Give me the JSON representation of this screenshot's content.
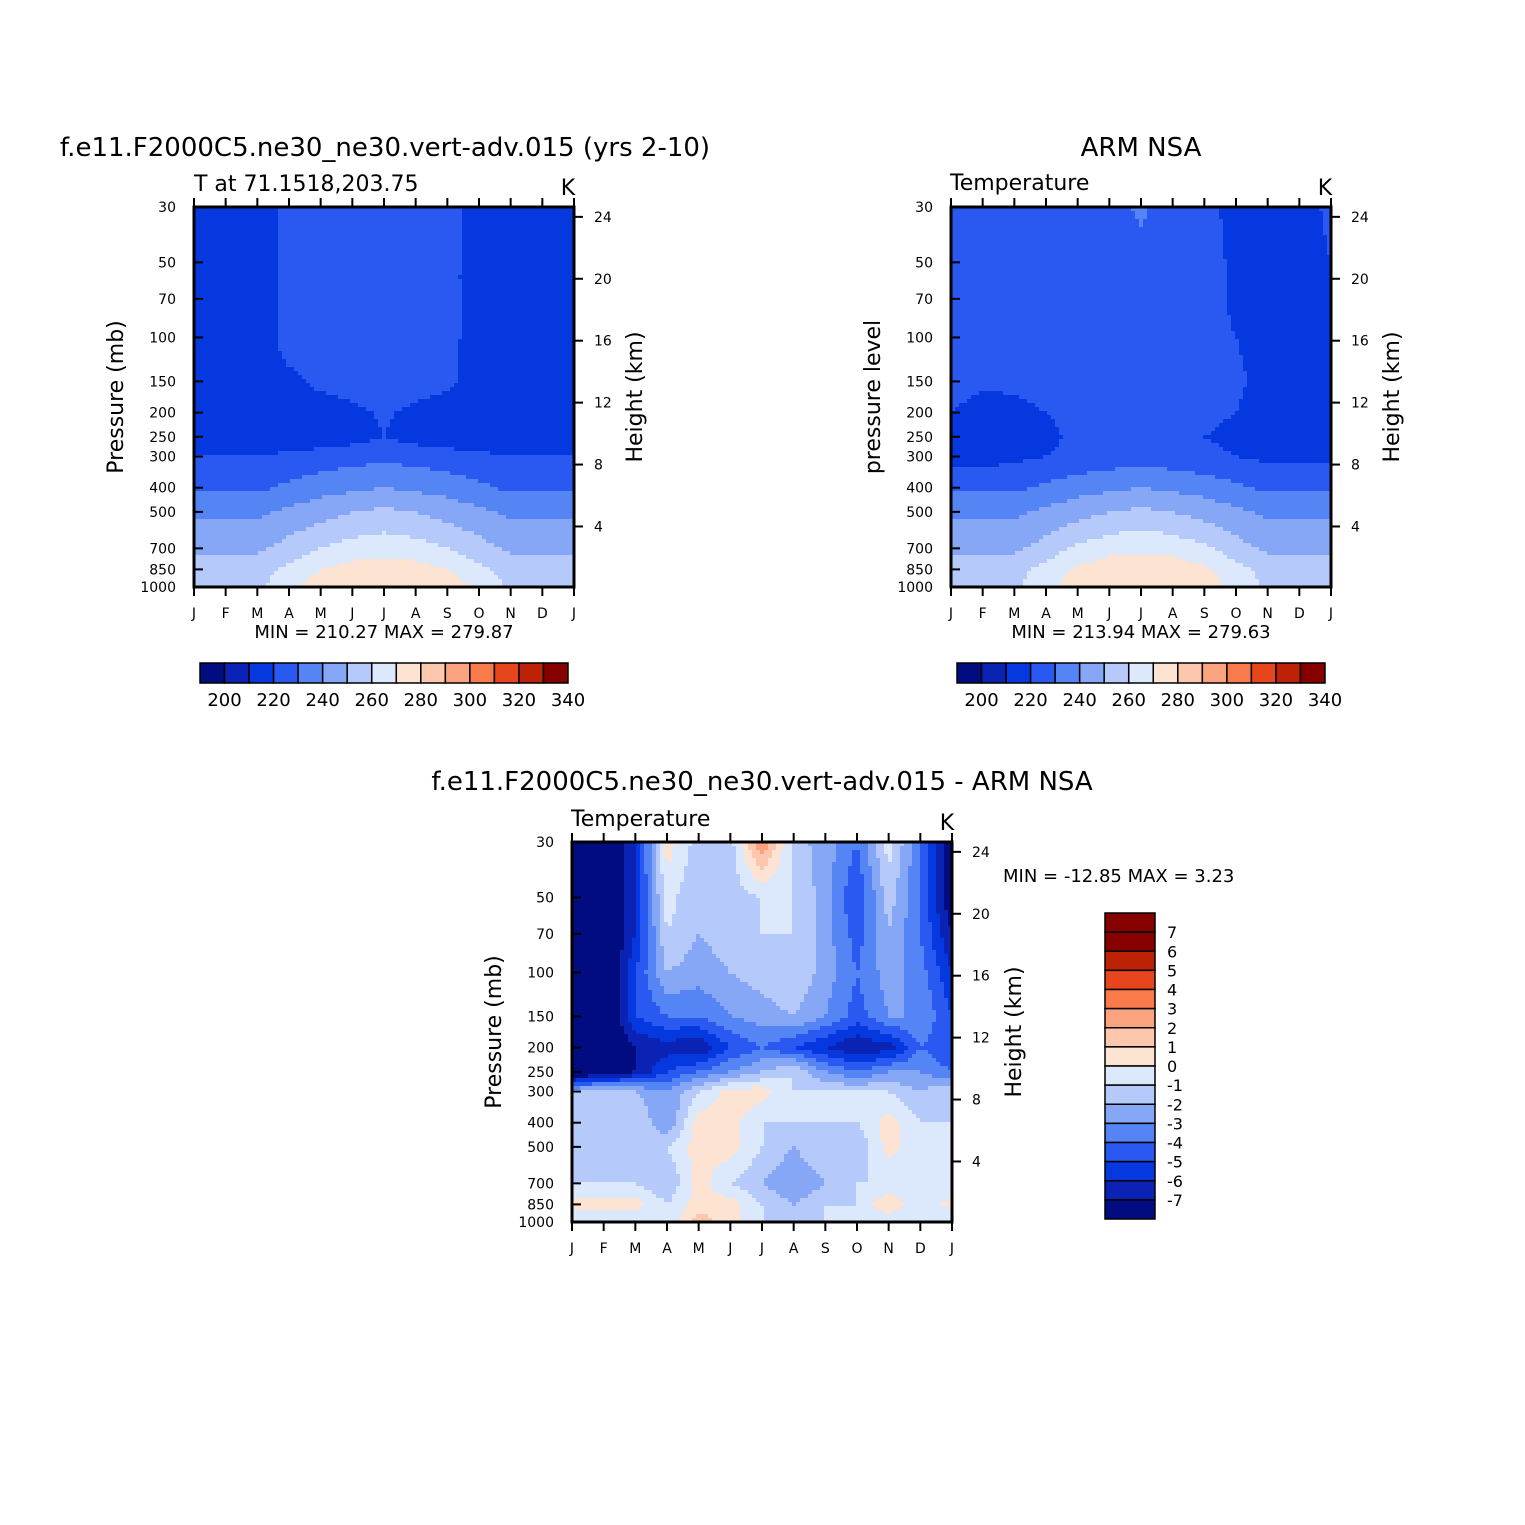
{
  "palette": {
    "abs": [
      "#000c80",
      "#0a23b4",
      "#0638e0",
      "#2a59f2",
      "#5585f5",
      "#86a7f6",
      "#b5cafa",
      "#dce8fc",
      "#fde4d2",
      "#fcc7ac",
      "#fba27f",
      "#f97b4c",
      "#e7461c",
      "#bd2106",
      "#870000"
    ],
    "diff": [
      "#000c80",
      "#0a23b4",
      "#0638e0",
      "#2a59f2",
      "#5585f5",
      "#86a7f6",
      "#b5cafa",
      "#dce8fc",
      "#fde4d2",
      "#fcc7ac",
      "#fba27f",
      "#f97b4c",
      "#e7461c",
      "#bd2106",
      "#870000"
    ]
  },
  "chart_data": [
    {
      "type": "heatmap",
      "title": "f.e11.F2000C5.ne30_ne30.vert-adv.015 (yrs 2-10)",
      "subtitle": "T at 71.1518,203.75",
      "units": "K",
      "ylabel": "Pressure (mb)",
      "ylabel_right": "Height (km)",
      "x_ticks": [
        "J",
        "F",
        "M",
        "A",
        "M",
        "J",
        "J",
        "A",
        "S",
        "O",
        "N",
        "D",
        "J"
      ],
      "y_ticks": [
        "30",
        "50",
        "70",
        "100",
        "150",
        "200",
        "250",
        "300",
        "400",
        "500",
        "700",
        "850",
        "1000"
      ],
      "y_ticks_right": [
        "24",
        "20",
        "16",
        "12",
        "8",
        "4"
      ],
      "stats": "MIN = 210.27 MAX = 279.87",
      "colorbar_labels": [
        "200",
        "220",
        "240",
        "260",
        "280",
        "300",
        "320",
        "340"
      ],
      "levels": [
        200,
        210,
        220,
        230,
        240,
        250,
        260,
        270,
        280,
        290,
        300,
        310,
        320,
        330,
        340
      ],
      "months": [
        "Jan",
        "Feb",
        "Mar",
        "Apr",
        "May",
        "Jun",
        "Jul",
        "Aug",
        "Sep",
        "Oct",
        "Nov",
        "Dec",
        "Jan"
      ],
      "plevs": [
        30,
        50,
        70,
        100,
        150,
        200,
        250,
        300,
        400,
        500,
        700,
        850,
        1000
      ],
      "values": [
        [
          214,
          214,
          214,
          224,
          224,
          224,
          224,
          224,
          224,
          214,
          214,
          214,
          214
        ],
        [
          214,
          214,
          214,
          224,
          224,
          224,
          224,
          224,
          224,
          214,
          214,
          214,
          214
        ],
        [
          214,
          214,
          214,
          224,
          224,
          224,
          224,
          224,
          224,
          214,
          214,
          214,
          214
        ],
        [
          214,
          214,
          214,
          224,
          224,
          224,
          224,
          224,
          224,
          214,
          214,
          214,
          214
        ],
        [
          214,
          214,
          214,
          218,
          222,
          224,
          224,
          224,
          222,
          216,
          214,
          214,
          214
        ],
        [
          214,
          214,
          214,
          214,
          216,
          218,
          221,
          218,
          216,
          214,
          214,
          214,
          214
        ],
        [
          214,
          214,
          214,
          214,
          214,
          216,
          220,
          216,
          214,
          214,
          214,
          214,
          214
        ],
        [
          220,
          220,
          220,
          222,
          224,
          226,
          228,
          226,
          224,
          222,
          220,
          220,
          220
        ],
        [
          228,
          228,
          228,
          232,
          236,
          238,
          240,
          238,
          236,
          232,
          228,
          228,
          228
        ],
        [
          238,
          238,
          238,
          242,
          246,
          250,
          252,
          250,
          246,
          242,
          238,
          238,
          238
        ],
        [
          248,
          248,
          248,
          254,
          260,
          264,
          266,
          264,
          260,
          254,
          248,
          248,
          248
        ],
        [
          256,
          256,
          256,
          262,
          270,
          274,
          275,
          274,
          270,
          262,
          256,
          256,
          256
        ],
        [
          258,
          258,
          258,
          266,
          276,
          280,
          280,
          280,
          276,
          268,
          258,
          258,
          258
        ]
      ]
    },
    {
      "type": "heatmap",
      "title": "ARM NSA",
      "subtitle": "Temperature",
      "units": "K",
      "ylabel": "pressure level",
      "ylabel_right": "Height (km)",
      "x_ticks": [
        "J",
        "F",
        "M",
        "A",
        "M",
        "J",
        "J",
        "A",
        "S",
        "O",
        "N",
        "D",
        "J"
      ],
      "y_ticks": [
        "30",
        "50",
        "70",
        "100",
        "150",
        "200",
        "250",
        "300",
        "400",
        "500",
        "700",
        "850",
        "1000"
      ],
      "y_ticks_right": [
        "24",
        "20",
        "16",
        "12",
        "8",
        "4"
      ],
      "stats": "MIN = 213.94 MAX = 279.63",
      "colorbar_labels": [
        "200",
        "220",
        "240",
        "260",
        "280",
        "300",
        "320",
        "340"
      ],
      "levels": [
        200,
        210,
        220,
        230,
        240,
        250,
        260,
        270,
        280,
        290,
        300,
        310,
        320,
        330,
        340
      ],
      "months": [
        "Jan",
        "Feb",
        "Mar",
        "Apr",
        "May",
        "Jun",
        "Jul",
        "Aug",
        "Sep",
        "Oct",
        "Nov",
        "Dec",
        "Jan"
      ],
      "plevs": [
        30,
        50,
        70,
        100,
        150,
        200,
        250,
        300,
        400,
        500,
        700,
        850,
        1000
      ],
      "values": [
        [
          224,
          224,
          224,
          224,
          224,
          226,
          232,
          224,
          224,
          216,
          216,
          216,
          222
        ],
        [
          224,
          224,
          224,
          224,
          224,
          224,
          226,
          224,
          224,
          218,
          216,
          216,
          220
        ],
        [
          224,
          224,
          224,
          224,
          224,
          224,
          224,
          224,
          224,
          218,
          216,
          216,
          216
        ],
        [
          224,
          224,
          224,
          224,
          224,
          224,
          224,
          224,
          224,
          220,
          216,
          216,
          216
        ],
        [
          224,
          222,
          222,
          224,
          224,
          224,
          224,
          224,
          224,
          222,
          216,
          216,
          216
        ],
        [
          220,
          216,
          217,
          220,
          222,
          224,
          224,
          224,
          222,
          220,
          216,
          216,
          216
        ],
        [
          216,
          214,
          216,
          218,
          222,
          224,
          224,
          224,
          220,
          218,
          216,
          216,
          216
        ],
        [
          216,
          216,
          218,
          220,
          222,
          224,
          226,
          224,
          222,
          220,
          218,
          218,
          218
        ],
        [
          228,
          228,
          228,
          232,
          236,
          238,
          240,
          238,
          236,
          232,
          228,
          228,
          228
        ],
        [
          238,
          238,
          238,
          242,
          246,
          250,
          252,
          250,
          246,
          242,
          238,
          238,
          238
        ],
        [
          248,
          248,
          248,
          254,
          262,
          266,
          268,
          266,
          262,
          254,
          248,
          248,
          248
        ],
        [
          256,
          256,
          256,
          264,
          272,
          276,
          277,
          276,
          272,
          264,
          256,
          256,
          256
        ],
        [
          258,
          258,
          258,
          266,
          276,
          280,
          280,
          280,
          276,
          266,
          258,
          258,
          258
        ]
      ]
    },
    {
      "type": "heatmap",
      "title": "f.e11.F2000C5.ne30_ne30.vert-adv.015 - ARM NSA",
      "subtitle": "Temperature",
      "units": "K",
      "ylabel": "Pressure (mb)",
      "ylabel_right": "Height (km)",
      "x_ticks": [
        "J",
        "F",
        "M",
        "A",
        "M",
        "J",
        "J",
        "A",
        "S",
        "O",
        "N",
        "D",
        "J"
      ],
      "y_ticks": [
        "30",
        "50",
        "70",
        "100",
        "150",
        "200",
        "250",
        "300",
        "400",
        "500",
        "700",
        "850",
        "1000"
      ],
      "y_ticks_right": [
        "24",
        "20",
        "16",
        "12",
        "8",
        "4"
      ],
      "stats": "MIN = -12.85 MAX = 3.23",
      "colorbar_labels": [
        "7",
        "6",
        "5",
        "4",
        "3",
        "2",
        "1",
        "0",
        "-1",
        "-2",
        "-3",
        "-4",
        "-5",
        "-6",
        "-7"
      ],
      "levels": [
        -7,
        -6,
        -5,
        -4,
        -3,
        -2,
        -1,
        0,
        1,
        2,
        3,
        4,
        5,
        6,
        7
      ],
      "months": [
        "Jan",
        "Feb",
        "Mar",
        "Apr",
        "May",
        "Jun",
        "Jul",
        "Aug",
        "Sep",
        "Oct",
        "Nov",
        "Dec",
        "Jan"
      ],
      "plevs": [
        30,
        50,
        70,
        100,
        150,
        200,
        250,
        300,
        400,
        500,
        700,
        850,
        1000
      ],
      "values": [
        [
          -10,
          -9,
          -6,
          0.5,
          -1.5,
          -1.5,
          3,
          -1.5,
          -2.5,
          -4,
          -0.5,
          -4,
          -8
        ],
        [
          -10,
          -9,
          -6,
          -0.5,
          -2,
          -1.5,
          -1,
          -1,
          -2.5,
          -5,
          -1.5,
          -4,
          -8
        ],
        [
          -10,
          -9,
          -6,
          -1,
          -2,
          -1.5,
          -1,
          -1,
          -2.5,
          -4.5,
          -2,
          -4,
          -7
        ],
        [
          -10,
          -9,
          -5,
          -2,
          -2.5,
          -2,
          -1.5,
          -1,
          -2.5,
          -4,
          -2.5,
          -3.5,
          -6
        ],
        [
          -10,
          -9,
          -5,
          -4,
          -4,
          -3,
          -2.5,
          -2,
          -3,
          -4.5,
          -3,
          -3,
          -5
        ],
        [
          -10,
          -9,
          -7,
          -6.5,
          -7,
          -5,
          -4,
          -5,
          -6,
          -7,
          -6.5,
          -4,
          -5
        ],
        [
          -9,
          -8,
          -7,
          -5,
          -4,
          -3,
          -2,
          -1,
          -3,
          -4,
          -3,
          -3,
          -4
        ],
        [
          -2,
          -1,
          -2,
          -3,
          -1,
          0.5,
          0.5,
          -1,
          -1,
          -1,
          -1,
          -2,
          -1
        ],
        [
          -1,
          -1,
          -1,
          -3,
          0.5,
          0.5,
          -1,
          -1,
          -1,
          -1,
          0.5,
          -1,
          -1
        ],
        [
          -1,
          -2,
          -1,
          -1,
          0.5,
          0.5,
          -1,
          -2,
          -1,
          -2,
          0.5,
          -1,
          -1
        ],
        [
          -1,
          -1,
          -1,
          -2,
          0.5,
          -1,
          -2,
          -3,
          -2,
          -1,
          -1,
          -1,
          -1
        ],
        [
          0.5,
          0.5,
          0.5,
          -1,
          0.5,
          0.5,
          -1,
          -2,
          -1,
          -1,
          1,
          -1,
          0.5
        ],
        [
          -1,
          -1,
          -1,
          -1,
          1.5,
          0.5,
          -1,
          -1,
          -1,
          -1,
          -1,
          -1,
          -1
        ]
      ]
    }
  ]
}
